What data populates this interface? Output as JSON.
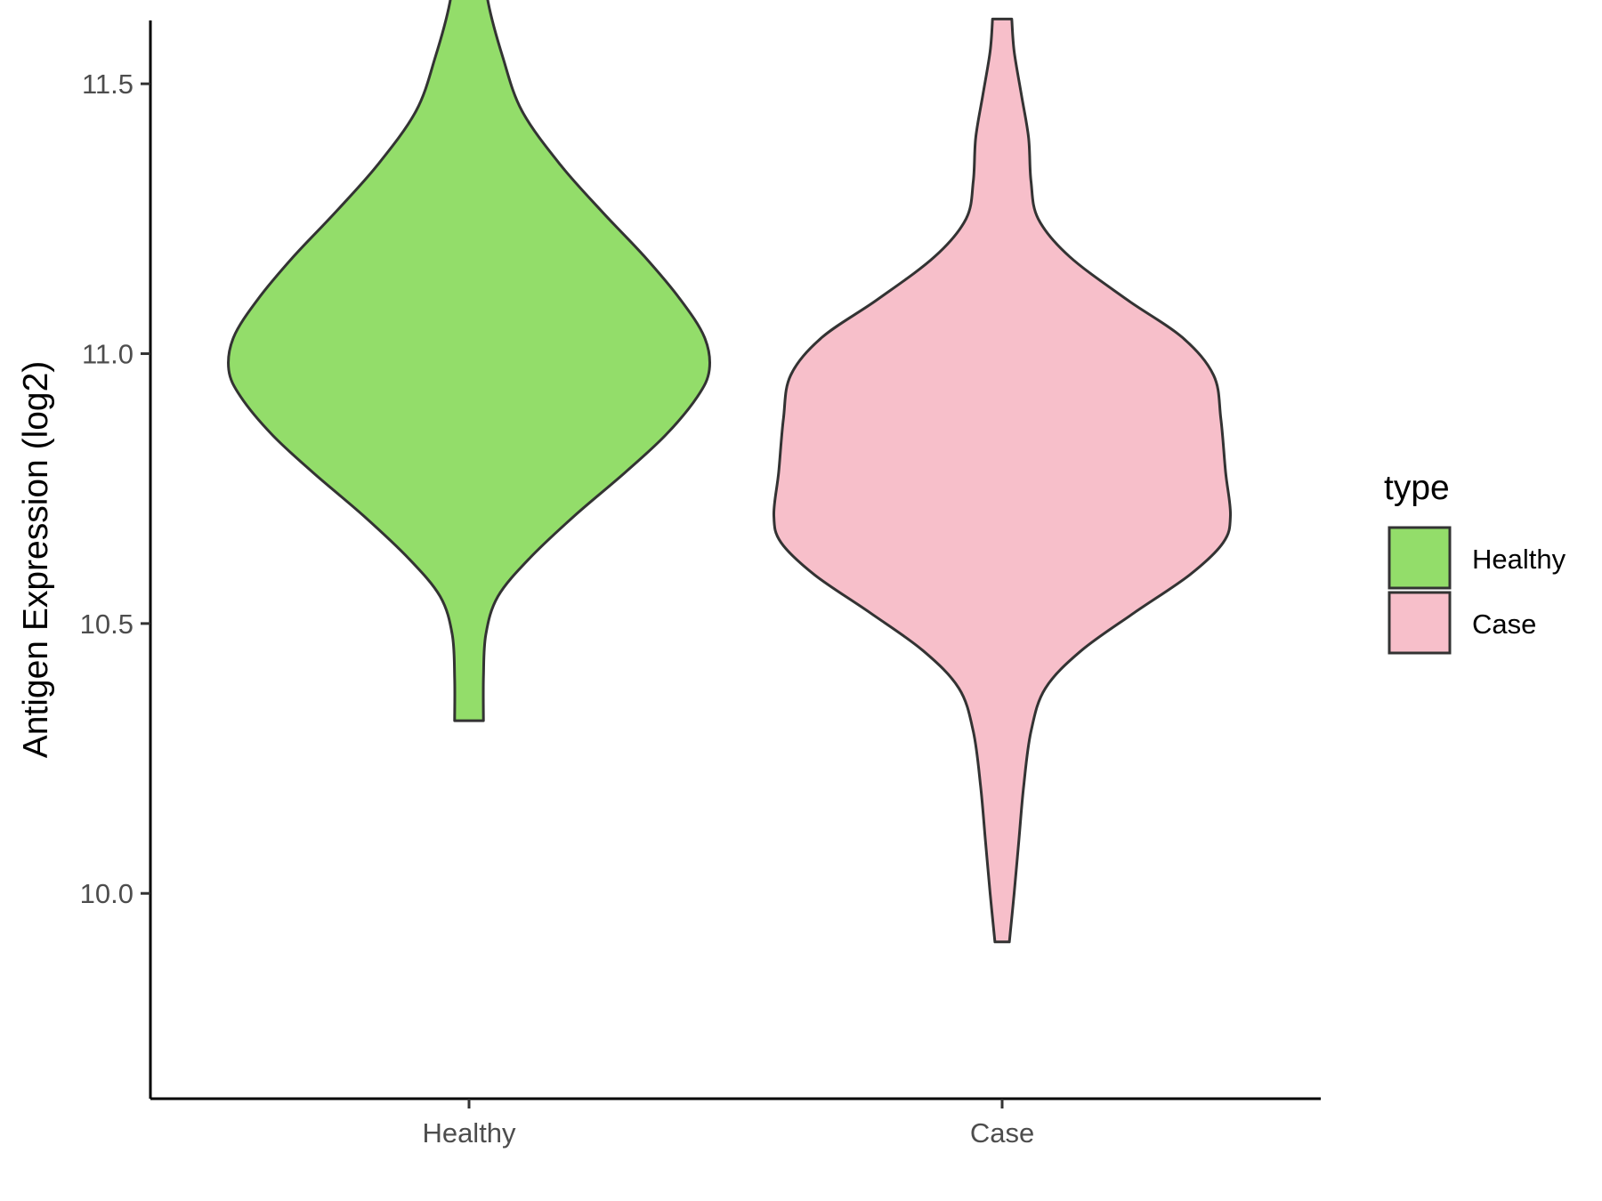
{
  "chart_data": {
    "type": "violin",
    "ylabel": "Antigen Expression (log2)",
    "xlabel": "",
    "ylim": [
      9.82,
      11.82
    ],
    "y_ticks": [
      10.0,
      10.5,
      11.0,
      11.5
    ],
    "y_tick_labels": [
      "10.0",
      "10.5",
      "11.0",
      "11.5"
    ],
    "categories": [
      "Healthy",
      "Case"
    ],
    "grid": false,
    "legend": {
      "title": "type",
      "position": "right",
      "entries": [
        "Healthy",
        "Case"
      ]
    },
    "series": [
      {
        "name": "Healthy",
        "color": "#93dd6a",
        "min": 10.32,
        "max": 11.73,
        "density_profile": [
          [
            10.32,
            0.06
          ],
          [
            10.4,
            0.06
          ],
          [
            10.48,
            0.07
          ],
          [
            10.55,
            0.12
          ],
          [
            10.62,
            0.25
          ],
          [
            10.7,
            0.44
          ],
          [
            10.78,
            0.65
          ],
          [
            10.85,
            0.82
          ],
          [
            10.92,
            0.95
          ],
          [
            10.97,
            1.0
          ],
          [
            11.03,
            0.98
          ],
          [
            11.1,
            0.88
          ],
          [
            11.18,
            0.73
          ],
          [
            11.26,
            0.56
          ],
          [
            11.35,
            0.38
          ],
          [
            11.45,
            0.22
          ],
          [
            11.55,
            0.14
          ],
          [
            11.65,
            0.08
          ],
          [
            11.73,
            0.06
          ]
        ]
      },
      {
        "name": "Case",
        "color": "#f7bfca",
        "min": 9.91,
        "max": 11.62,
        "density_profile": [
          [
            9.91,
            0.03
          ],
          [
            10.0,
            0.05
          ],
          [
            10.1,
            0.07
          ],
          [
            10.2,
            0.09
          ],
          [
            10.3,
            0.12
          ],
          [
            10.38,
            0.18
          ],
          [
            10.45,
            0.33
          ],
          [
            10.52,
            0.55
          ],
          [
            10.59,
            0.78
          ],
          [
            10.65,
            0.92
          ],
          [
            10.7,
            0.95
          ],
          [
            10.78,
            0.93
          ],
          [
            10.88,
            0.91
          ],
          [
            10.96,
            0.88
          ],
          [
            11.03,
            0.75
          ],
          [
            11.1,
            0.52
          ],
          [
            11.18,
            0.28
          ],
          [
            11.25,
            0.15
          ],
          [
            11.32,
            0.12
          ],
          [
            11.4,
            0.11
          ],
          [
            11.48,
            0.08
          ],
          [
            11.56,
            0.05
          ],
          [
            11.62,
            0.04
          ]
        ]
      }
    ]
  }
}
